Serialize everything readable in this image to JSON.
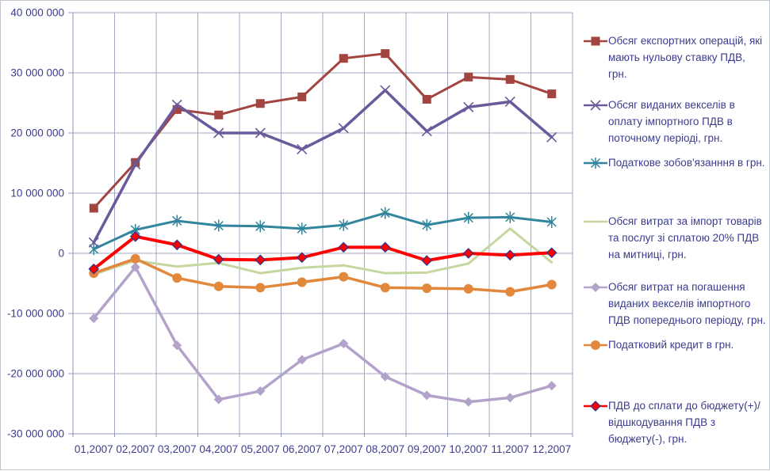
{
  "chart_data": {
    "type": "line",
    "title": "",
    "categories": [
      "01,2007",
      "02,2007",
      "03,2007",
      "04,2007",
      "05,2007",
      "06,2007",
      "07,2007",
      "08,2007",
      "09,2007",
      "10,2007",
      "11,2007",
      "12,2007"
    ],
    "y_axis": {
      "min": -30000000,
      "max": 40000000,
      "interval": 10000000,
      "tick_labels": [
        "40 000 000",
        "30 000 000",
        "20 000 000",
        "10 000 000",
        "0",
        "-10 000 000",
        "-20 000 000",
        "-30 000 000"
      ]
    },
    "grid": true,
    "legend_position": "right",
    "series": [
      {
        "name": "Обсяг експортних операцій, які мають нульову ставку ПДВ, грн.",
        "color": "#a2443f",
        "marker": "square",
        "line_width": 3,
        "values": [
          7500000,
          15100000,
          23900000,
          23000000,
          24900000,
          26000000,
          32400000,
          33200000,
          25600000,
          29300000,
          28900000,
          26500000
        ]
      },
      {
        "name": "Обсяг виданих векселів в оплату імпортного ПДВ в поточному періоді, грн.",
        "color": "#6b5a9b",
        "marker": "x",
        "line_width": 3.5,
        "values": [
          1800000,
          14800000,
          24700000,
          20000000,
          20000000,
          17300000,
          20800000,
          27100000,
          20300000,
          24300000,
          25200000,
          19300000
        ]
      },
      {
        "name": "Податкове зобов'язанння в грн.",
        "color": "#31859c",
        "marker": "star",
        "line_width": 3,
        "values": [
          700000,
          3900000,
          5400000,
          4600000,
          4500000,
          4100000,
          4700000,
          6700000,
          4700000,
          5900000,
          6000000,
          5200000
        ]
      },
      {
        "name": "Обсяг витрат за імпорт товарів та послуг зі сплатою 20% ПДВ  на митниці, грн.",
        "color": "#c5d79f",
        "marker": "none",
        "line_width": 3,
        "values": [
          -3500000,
          -1200000,
          -2200000,
          -1600000,
          -3300000,
          -2400000,
          -2000000,
          -3300000,
          -3200000,
          -1700000,
          4100000,
          -1500000
        ]
      },
      {
        "name": "Обсяг витрат на погашення виданих векселів імпортного ПДВ попереднього періоду, грн.",
        "color": "#b3a2c9",
        "marker": "diamond",
        "line_width": 3.5,
        "values": [
          -10800000,
          -2300000,
          -15300000,
          -24300000,
          -22900000,
          -17700000,
          -15000000,
          -20500000,
          -23600000,
          -24700000,
          -24000000,
          -22000000
        ]
      },
      {
        "name": "Податковий  кредит в грн.",
        "color": "#e2883c",
        "marker": "circle",
        "line_width": 3.5,
        "values": [
          -3300000,
          -900000,
          -4100000,
          -5500000,
          -5700000,
          -4800000,
          -3900000,
          -5700000,
          -5800000,
          -5900000,
          -6400000,
          -5200000
        ]
      },
      {
        "name": "ПДВ до сплати до бюджету(+)/відшкодування  ПДВ з бюджету(-), грн.",
        "color": "#fe0000",
        "marker": "diamond-edged",
        "marker_edge": "#2b3390",
        "line_width": 4,
        "values": [
          -2600000,
          2800000,
          1400000,
          -1000000,
          -1100000,
          -700000,
          1000000,
          1000000,
          -1200000,
          0,
          -300000,
          100000
        ]
      }
    ]
  },
  "style_colors": {
    "grid": "#a3a9c2",
    "axis": "#8f96b4",
    "tick_text": "#3c3c8e",
    "background": "#ffffff",
    "frame_border": "#c2c6ce"
  }
}
